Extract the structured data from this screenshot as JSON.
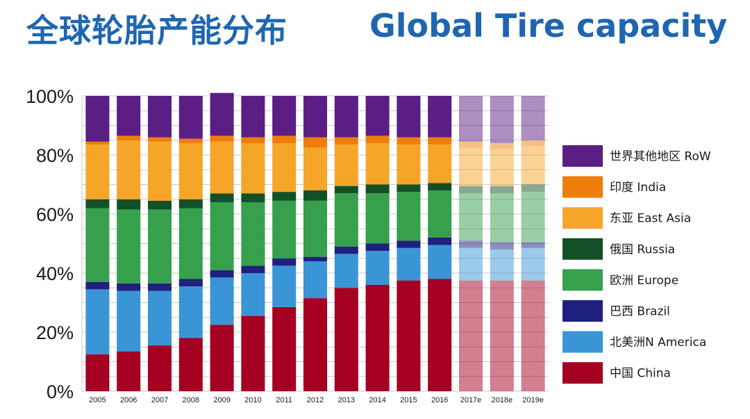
{
  "header": {
    "title_zh": "全球轮胎产能分布",
    "title_en": "Global Tire capacity"
  },
  "chart_data": {
    "type": "bar",
    "stacked": true,
    "title": "Global Tire capacity",
    "ylim": [
      0,
      100
    ],
    "yticks": [
      "0%",
      "20%",
      "40%",
      "60%",
      "80%",
      "100%"
    ],
    "categories": [
      "2005",
      "2006",
      "2007",
      "2008",
      "2009",
      "2010",
      "2011",
      "2012",
      "2013",
      "2014",
      "2015",
      "2016",
      "2017e",
      "2018e",
      "2019e"
    ],
    "estimated_from_index": 12,
    "legend_position": "right",
    "grid": true,
    "series": [
      {
        "name": "中国 China",
        "color": "#a50021",
        "values": [
          12.5,
          13.5,
          15.5,
          18,
          22.5,
          25.5,
          28.5,
          31.5,
          35,
          36,
          37.5,
          38,
          37.5,
          37.5,
          37.5
        ]
      },
      {
        "name": "北美洲N America",
        "color": "#3a95d6",
        "values": [
          22,
          20.5,
          18.5,
          17.5,
          16,
          14.5,
          14,
          12.5,
          11.5,
          11.5,
          11,
          11.5,
          11,
          10.5,
          11
        ]
      },
      {
        "name": "巴西 Brazil",
        "color": "#202080",
        "values": [
          2.5,
          2.5,
          2.5,
          2.5,
          2.5,
          2.5,
          2.5,
          1.5,
          2.5,
          2.5,
          2.5,
          2.5,
          2.5,
          2.5,
          2
        ]
      },
      {
        "name": "欧洲 Europe",
        "color": "#36a04d",
        "values": [
          25,
          25,
          25,
          24,
          23,
          21.5,
          19.5,
          19,
          18,
          17,
          16.5,
          16,
          16,
          16.5,
          17
        ]
      },
      {
        "name": "俄国 Russia",
        "color": "#145027",
        "values": [
          3,
          3.5,
          3,
          3,
          3,
          3,
          3,
          3.5,
          2.5,
          3,
          2.5,
          2.5,
          2.5,
          2.5,
          2.5
        ]
      },
      {
        "name": "东亚 East Asia",
        "color": "#f5a629",
        "values": [
          18.5,
          20,
          20,
          19,
          17.5,
          17,
          16.5,
          14.5,
          14,
          14,
          13.5,
          13,
          13,
          12.5,
          13
        ]
      },
      {
        "name": "印度 India",
        "color": "#ef7d0b",
        "values": [
          1,
          1.5,
          1.5,
          1.5,
          2,
          2,
          2.5,
          3.5,
          2.5,
          2.5,
          2.5,
          2.5,
          2,
          2,
          2
        ]
      },
      {
        "name": "世界其他地区 RoW",
        "color": "#5a1e85",
        "values": [
          15.5,
          13.5,
          14,
          14.5,
          14.5,
          14,
          13.5,
          14,
          14,
          13.5,
          14,
          14,
          15.5,
          16,
          15
        ]
      }
    ]
  }
}
